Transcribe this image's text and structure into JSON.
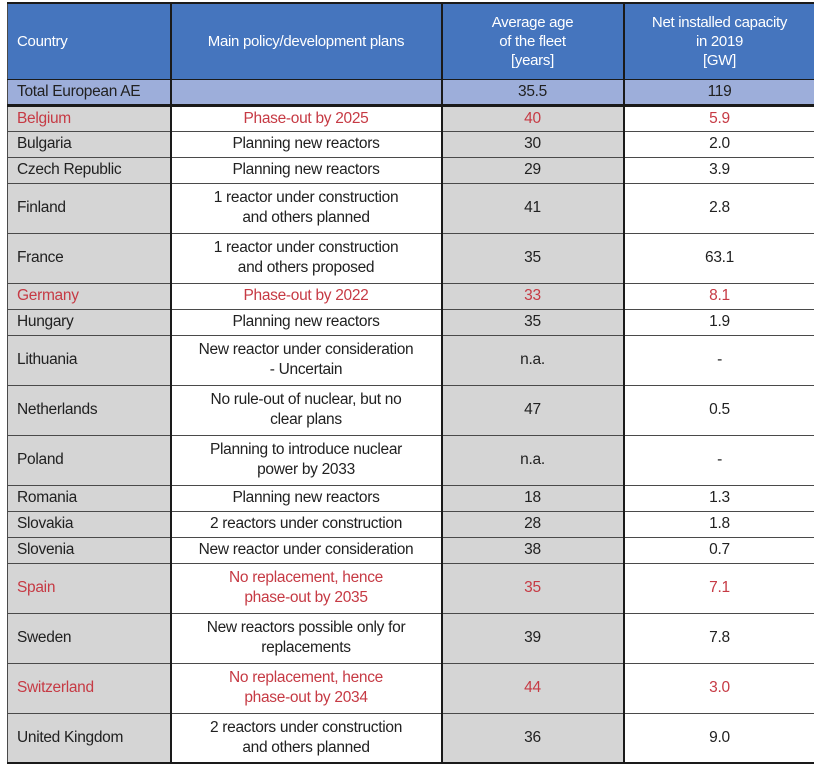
{
  "table": {
    "header": {
      "country": "Country",
      "policy": "Main policy/development plans",
      "age": "Average age\nof the fleet\n[years]",
      "capacity": "Net installed capacity\nin 2019\n[GW]"
    },
    "total_row": {
      "country": "Total European AE",
      "policy": "",
      "age": "35.5",
      "capacity": "119"
    },
    "rows": [
      {
        "country": "Belgium",
        "policy": "Phase-out by 2025",
        "age": "40",
        "capacity": "5.9",
        "phaseout": true
      },
      {
        "country": "Bulgaria",
        "policy": "Planning new reactors",
        "age": "30",
        "capacity": "2.0",
        "phaseout": false
      },
      {
        "country": "Czech Republic",
        "policy": "Planning new reactors",
        "age": "29",
        "capacity": "3.9",
        "phaseout": false
      },
      {
        "country": "Finland",
        "policy": "1 reactor under construction\nand others planned",
        "age": "41",
        "capacity": "2.8",
        "phaseout": false
      },
      {
        "country": "France",
        "policy": "1 reactor under construction\nand others proposed",
        "age": "35",
        "capacity": "63.1",
        "phaseout": false
      },
      {
        "country": "Germany",
        "policy": "Phase-out by 2022",
        "age": "33",
        "capacity": "8.1",
        "phaseout": true
      },
      {
        "country": "Hungary",
        "policy": "Planning new reactors",
        "age": "35",
        "capacity": "1.9",
        "phaseout": false
      },
      {
        "country": "Lithuania",
        "policy": "New reactor under consideration\n- Uncertain",
        "age": "n.a.",
        "capacity": "-",
        "phaseout": false
      },
      {
        "country": "Netherlands",
        "policy": "No rule-out of nuclear, but no\nclear plans",
        "age": "47",
        "capacity": "0.5",
        "phaseout": false
      },
      {
        "country": "Poland",
        "policy": "Planning to introduce nuclear\npower by 2033",
        "age": "n.a.",
        "capacity": "-",
        "phaseout": false
      },
      {
        "country": "Romania",
        "policy": "Planning new reactors",
        "age": "18",
        "capacity": "1.3",
        "phaseout": false
      },
      {
        "country": "Slovakia",
        "policy": "2 reactors under construction",
        "age": "28",
        "capacity": "1.8",
        "phaseout": false
      },
      {
        "country": "Slovenia",
        "policy": "New reactor under consideration",
        "age": "38",
        "capacity": "0.7",
        "phaseout": false
      },
      {
        "country": "Spain",
        "policy": "No replacement, hence\nphase-out by 2035",
        "age": "35",
        "capacity": "7.1",
        "phaseout": true
      },
      {
        "country": "Sweden",
        "policy": "New reactors possible only for\nreplacements",
        "age": "39",
        "capacity": "7.8",
        "phaseout": false
      },
      {
        "country": "Switzerland",
        "policy": "No replacement, hence\nphase-out by 2034",
        "age": "44",
        "capacity": "3.0",
        "phaseout": true
      },
      {
        "country": "United Kingdom",
        "policy": "2 reactors under construction\nand others planned",
        "age": "36",
        "capacity": "9.0",
        "phaseout": false
      }
    ]
  },
  "colors": {
    "header_bg": "#4575BE",
    "total_row_bg": "#9DAEDA",
    "shaded_cell_bg": "#D5D5D5",
    "phaseout_red": "#C63A44",
    "header_text": "#FFFFFF",
    "body_text": "#212121"
  }
}
